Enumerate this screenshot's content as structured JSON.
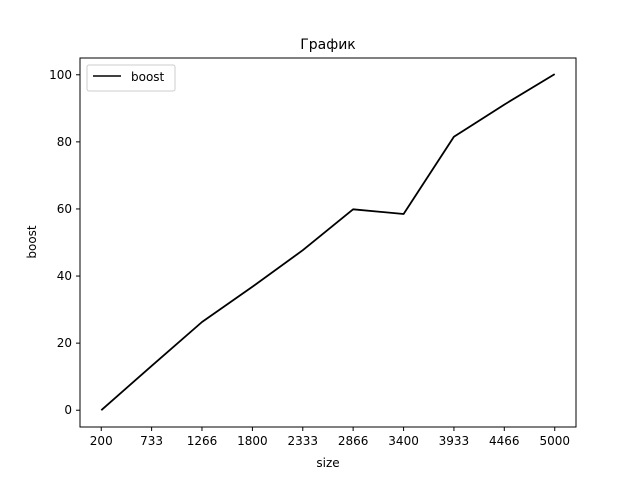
{
  "chart_data": {
    "type": "line",
    "title": "График",
    "xlabel": "size",
    "ylabel": "boost",
    "x": [
      200,
      733,
      1266,
      1800,
      2333,
      2866,
      3400,
      3933,
      4466,
      5000
    ],
    "x_tick_labels": [
      "200",
      "733",
      "1266",
      "1800",
      "2333",
      "2866",
      "3400",
      "3933",
      "4466",
      "5000"
    ],
    "y_ticks": [
      0,
      20,
      40,
      60,
      80,
      100
    ],
    "y_tick_labels": [
      "0",
      "20",
      "40",
      "60",
      "80",
      "100"
    ],
    "xlim": [
      -25,
      5225
    ],
    "ylim": [
      -5,
      105
    ],
    "grid": false,
    "legend": "top-left",
    "series": [
      {
        "name": "boost",
        "color": "#000000",
        "values": [
          0,
          13.2,
          26.3,
          36.8,
          47.7,
          59.9,
          58.5,
          81.5,
          91.1,
          100.2
        ]
      }
    ]
  }
}
